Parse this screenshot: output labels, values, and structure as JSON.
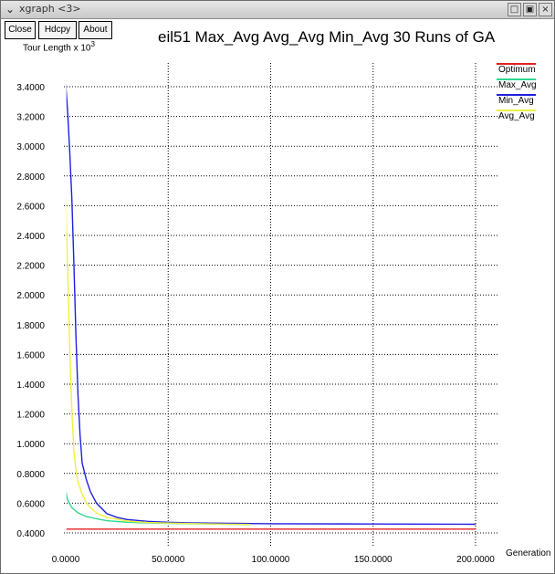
{
  "window": {
    "title": "xgraph <3>",
    "controls": {
      "minimize": "□",
      "maximize": "▣",
      "close": "×"
    }
  },
  "toolbar": {
    "close_label": "Close",
    "hdcpy_label": "Hdcpy",
    "about_label": "About"
  },
  "chart_data": {
    "type": "line",
    "title": "eil51 Max_Avg Avg_Avg Min_Avg 30 Runs of GA",
    "ylabel_text": "Tour Length x 10",
    "ylabel_exp": "3",
    "xlabel": "Generation",
    "xlim": [
      0,
      200
    ],
    "ylim": [
      0.4,
      3.4
    ],
    "xticks": [
      "0.0000",
      "50.0000",
      "100.0000",
      "150.0000",
      "200.0000"
    ],
    "xtick_values": [
      0,
      50,
      100,
      150,
      200
    ],
    "yticks": [
      "0.4000",
      "0.6000",
      "0.8000",
      "1.0000",
      "1.2000",
      "1.4000",
      "1.6000",
      "1.8000",
      "2.0000",
      "2.2000",
      "2.4000",
      "2.6000",
      "2.8000",
      "3.0000",
      "3.2000",
      "3.4000"
    ],
    "ytick_values": [
      0.4,
      0.6,
      0.8,
      1.0,
      1.2,
      1.4,
      1.6,
      1.8,
      2.0,
      2.2,
      2.4,
      2.6,
      2.8,
      3.0,
      3.2,
      3.4
    ],
    "grid": true,
    "legend_position": "top-right",
    "series": [
      {
        "name": "Optimum",
        "color": "#e02020",
        "x": [
          0,
          200
        ],
        "y": [
          0.426,
          0.426
        ]
      },
      {
        "name": "Max_Avg",
        "color": "#30d890",
        "x": [
          0,
          1,
          3,
          6,
          10,
          15,
          20,
          30,
          40,
          50,
          60,
          70,
          80,
          90
        ],
        "y": [
          0.68,
          0.62,
          0.57,
          0.535,
          0.51,
          0.495,
          0.482,
          0.472,
          0.467,
          0.464,
          0.462,
          0.46,
          0.458,
          0.456
        ]
      },
      {
        "name": "Min_Avg",
        "color": "#2020e0",
        "x": [
          0,
          1,
          2,
          3,
          4,
          5,
          6,
          7,
          8,
          10,
          12,
          15,
          20,
          25,
          30,
          40,
          50,
          60,
          80,
          100,
          150,
          200
        ],
        "y": [
          3.42,
          3.22,
          2.95,
          2.65,
          2.2,
          1.72,
          1.32,
          1.06,
          0.87,
          0.76,
          0.68,
          0.6,
          0.53,
          0.505,
          0.49,
          0.478,
          0.472,
          0.468,
          0.465,
          0.462,
          0.46,
          0.458
        ]
      },
      {
        "name": "Avg_Avg",
        "color": "#f0f040",
        "x": [
          0,
          1,
          2,
          3,
          4,
          5,
          6,
          8,
          10,
          12,
          15,
          20,
          30,
          40,
          50,
          60,
          70,
          80,
          90
        ],
        "y": [
          2.65,
          2.15,
          1.62,
          1.22,
          0.95,
          0.82,
          0.74,
          0.66,
          0.605,
          0.57,
          0.535,
          0.505,
          0.48,
          0.47,
          0.466,
          0.463,
          0.461,
          0.459,
          0.457
        ]
      }
    ]
  }
}
